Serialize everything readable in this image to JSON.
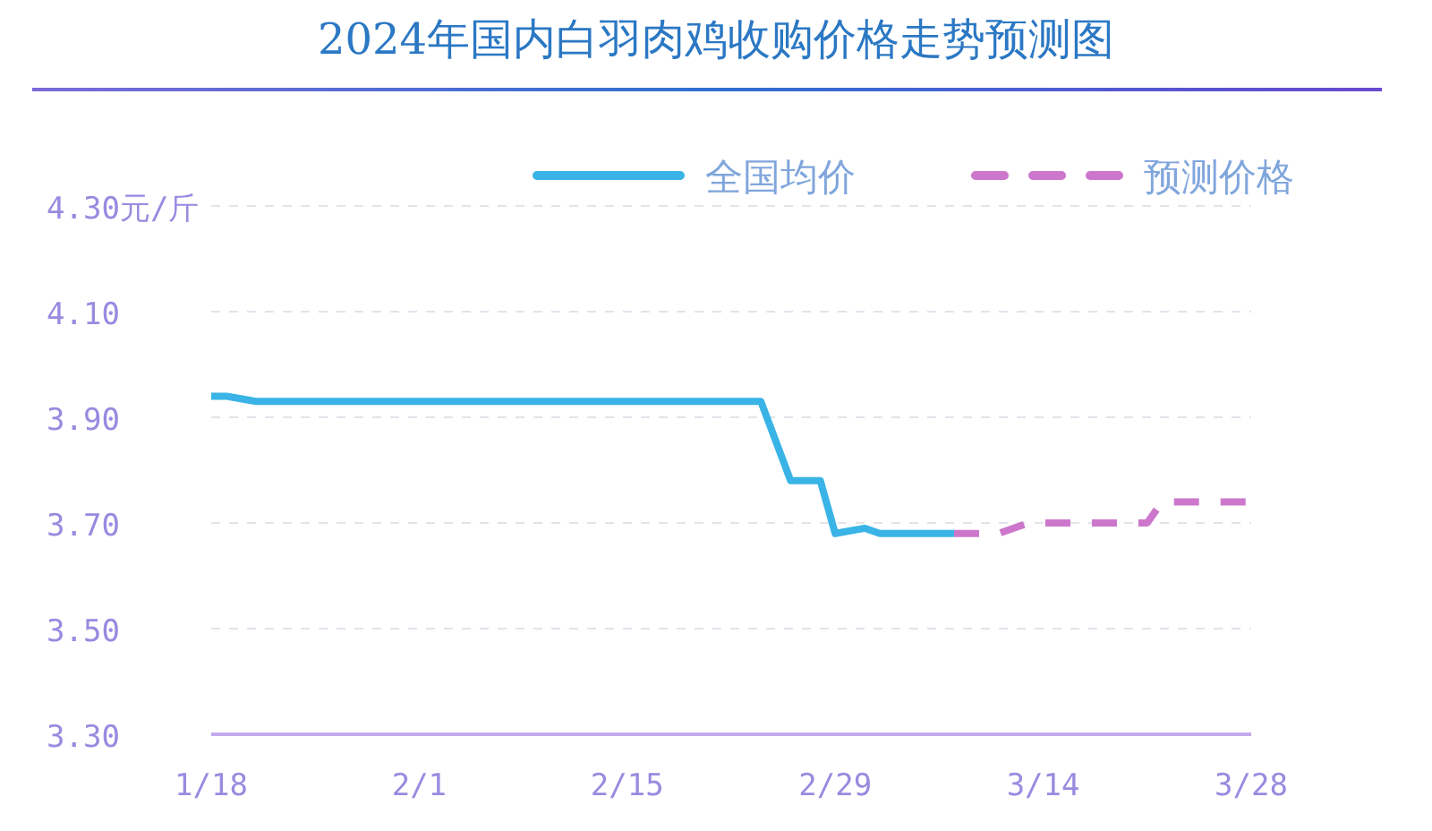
{
  "chart_data": {
    "type": "line",
    "title": "2024年国内白羽肉鸡收购价格走势预测图",
    "xlim": [
      "--01-18",
      "--03-28"
    ],
    "xticks": [
      {
        "value": "--01-18",
        "label": "1/18"
      },
      {
        "value": "--02-01",
        "label": "2/1"
      },
      {
        "value": "--02-15",
        "label": "2/15"
      },
      {
        "value": "--02-29",
        "label": "2/29"
      },
      {
        "value": "--03-14",
        "label": "3/14"
      },
      {
        "value": "--03-28",
        "label": "3/28"
      }
    ],
    "ylim": [
      3.3,
      4.3
    ],
    "yticks": [
      {
        "value": 3.3,
        "label": "3.30"
      },
      {
        "value": 3.5,
        "label": "3.50"
      },
      {
        "value": 3.7,
        "label": "3.70"
      },
      {
        "value": 3.9,
        "label": "3.90"
      },
      {
        "value": 4.1,
        "label": "4.10"
      },
      {
        "value": 4.3,
        "label": "4.30元/斤"
      }
    ],
    "grid": "y",
    "legend": "top right",
    "series": [
      {
        "name": "全国均价",
        "color": "#3ab4e6",
        "line_style": "solid",
        "x": [
          "--01-18",
          "--01-19",
          "--01-21",
          "--02-24",
          "--02-26",
          "--02-28",
          "--02-29",
          "--03-02",
          "--03-03",
          "--03-08"
        ],
        "values": [
          3.94,
          3.94,
          3.93,
          3.93,
          3.78,
          3.78,
          3.68,
          3.69,
          3.68,
          3.68
        ]
      },
      {
        "name": "预测价格",
        "color": "#cc77cc",
        "line_style": "dashed",
        "x": [
          "--03-08",
          "--03-11",
          "--03-13",
          "--03-21",
          "--03-22",
          "--03-28"
        ],
        "values": [
          3.68,
          3.68,
          3.7,
          3.7,
          3.74,
          3.74
        ]
      }
    ]
  }
}
